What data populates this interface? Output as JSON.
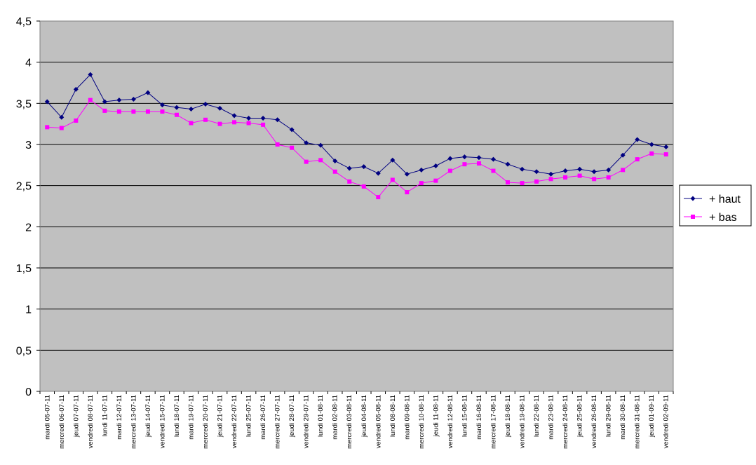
{
  "chart_data": {
    "type": "line",
    "title": "",
    "xlabel": "",
    "ylabel": "",
    "ylim": [
      0,
      4.5
    ],
    "yticks": [
      "0",
      "0,5",
      "1",
      "1,5",
      "2",
      "2,5",
      "3",
      "3,5",
      "4",
      "4,5"
    ],
    "grid": "horizontal major gridlines",
    "legend_position": "right",
    "plot_background": "#c0c0c0",
    "categories": [
      "mardi 05-07-11",
      "mercredi 06-07-11",
      "jeudi 07-07-11",
      "vendredi 08-07-11",
      "lundi 11-07-11",
      "mardi 12-07-11",
      "mercredi 13-07-11",
      "jeudi 14-07-11",
      "vendredi 15-07-11",
      "lundi 18-07-11",
      "mardi 19-07-11",
      "mercredi 20-07-11",
      "jeudi 21-07-11",
      "vendredi 22-07-11",
      "lundi 25-07-11",
      "mardi 26-07-11",
      "mercredi 27-07-11",
      "jeudi 28-07-11",
      "vendredi 29-07-11",
      "lundi 01-08-11",
      "mardi 02-08-11",
      "mercredi 03-08-11",
      "jeudi 04-08-11",
      "vendredi 05-08-11",
      "lundi 08-08-11",
      "mardi 09-08-11",
      "mercredi 10-08-11",
      "jeudi 11-08-11",
      "vendredi 12-08-11",
      "lundi 15-08-11",
      "mardi 16-08-11",
      "mercredi 17-08-11",
      "jeudi 18-08-11",
      "vendredi 19-08-11",
      "lundi 22-08-11",
      "mardi 23-08-11",
      "mercredi 24-08-11",
      "jeudi 25-08-11",
      "vendredi 26-08-11",
      "lundi 29-08-11",
      "mardi 30-08-11",
      "mercredi 31-08-11",
      "jeudi 01-09-11",
      "vendredi 02-09-11"
    ],
    "series": [
      {
        "name": "+ haut",
        "color": "#000080",
        "marker": "diamond",
        "values": [
          3.52,
          3.33,
          3.67,
          3.85,
          3.52,
          3.54,
          3.55,
          3.63,
          3.48,
          3.45,
          3.43,
          3.49,
          3.44,
          3.35,
          3.32,
          3.32,
          3.3,
          3.18,
          3.02,
          2.99,
          2.8,
          2.71,
          2.73,
          2.65,
          2.81,
          2.64,
          2.69,
          2.74,
          2.83,
          2.85,
          2.84,
          2.82,
          2.76,
          2.7,
          2.67,
          2.64,
          2.68,
          2.7,
          2.67,
          2.69,
          2.87,
          3.06,
          3.0,
          2.97
        ]
      },
      {
        "name": "+ bas",
        "color": "#ff00ff",
        "marker": "square",
        "values": [
          3.21,
          3.2,
          3.29,
          3.54,
          3.41,
          3.4,
          3.4,
          3.4,
          3.4,
          3.36,
          3.26,
          3.3,
          3.25,
          3.27,
          3.26,
          3.24,
          3.0,
          2.96,
          2.79,
          2.81,
          2.67,
          2.55,
          2.49,
          2.36,
          2.57,
          2.42,
          2.53,
          2.56,
          2.68,
          2.76,
          2.77,
          2.68,
          2.54,
          2.53,
          2.55,
          2.58,
          2.6,
          2.62,
          2.58,
          2.6,
          2.69,
          2.82,
          2.89,
          2.88
        ]
      }
    ]
  }
}
